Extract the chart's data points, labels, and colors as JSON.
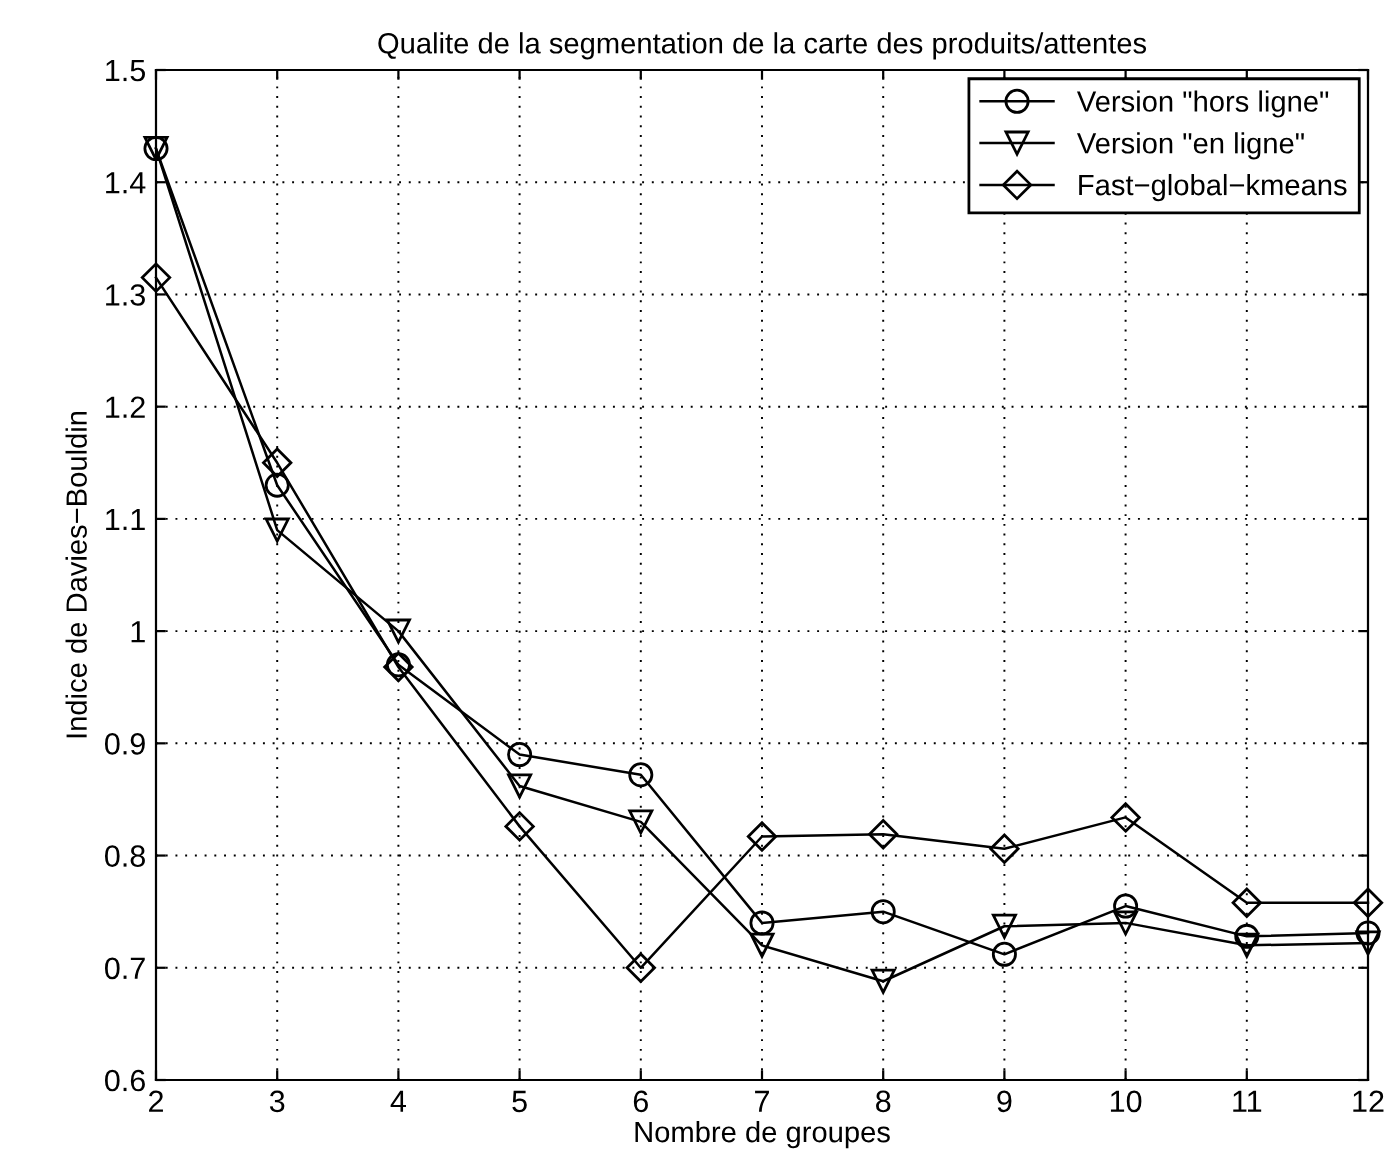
{
  "chart_data": {
    "type": "line",
    "title": "Qualite de la segmentation de la carte des produits/attentes",
    "xlabel": "Nombre de groupes",
    "ylabel": "Indice de Davies−Bouldin",
    "x": [
      2,
      3,
      4,
      5,
      6,
      7,
      8,
      9,
      10,
      11,
      12
    ],
    "series": [
      {
        "name": "Version \"hors ligne\"",
        "color": "#000000",
        "marker": "circle",
        "values": [
          1.43,
          1.13,
          0.97,
          0.89,
          0.872,
          0.74,
          0.75,
          0.712,
          0.755,
          0.728,
          0.731
        ]
      },
      {
        "name": "Version \"en ligne\"",
        "color": "#000000",
        "marker": "triangle",
        "values": [
          1.43,
          1.09,
          1.0,
          0.862,
          0.83,
          0.72,
          0.688,
          0.737,
          0.74,
          0.72,
          0.722
        ]
      },
      {
        "name": "Fast−global−kmeans",
        "color": "#000000",
        "marker": "diamond",
        "values": [
          1.315,
          1.15,
          0.968,
          0.826,
          0.7,
          0.817,
          0.819,
          0.806,
          0.834,
          0.758,
          0.758
        ]
      }
    ],
    "xlim": [
      2,
      12
    ],
    "xticks": [
      2,
      3,
      4,
      5,
      6,
      7,
      8,
      9,
      10,
      11,
      12
    ],
    "ylim": [
      0.6,
      1.5
    ],
    "yticks": [
      0.6,
      0.7,
      0.8,
      0.9,
      1,
      1.1,
      1.2,
      1.3,
      1.4,
      1.5
    ],
    "grid": true,
    "legend": "top right",
    "line_style": "solid"
  }
}
